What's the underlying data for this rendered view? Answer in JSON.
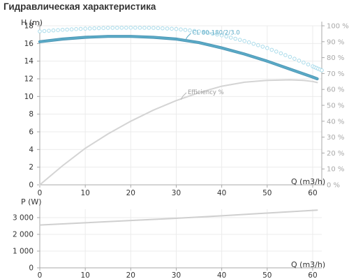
{
  "title": "Гидравлическая характеристика",
  "colors": {
    "head_curve": "#5aaac6",
    "head_outline": "#4a92b2",
    "efficiency_curve": "#d4d4d4",
    "power_curve": "#cfcfcf",
    "npsh_dots": "#a9dbea",
    "grid": "#ebebeb",
    "axis": "#a8a8a8",
    "text": "#333333",
    "right_axis_text": "#a8a8a8"
  },
  "chart_data": [
    {
      "type": "line",
      "title": "Гидравлическая характеристика",
      "xlabel": "Q (m3/h)",
      "ylabel": "H (m)",
      "y2label": "",
      "xlim": [
        0,
        62
      ],
      "ylim": [
        0,
        18
      ],
      "y2lim": [
        0,
        100
      ],
      "xticks": [
        "0",
        "10",
        "20",
        "30",
        "40",
        "50",
        "60"
      ],
      "yticks": [
        "0",
        "2",
        "4",
        "6",
        "8",
        "10",
        "12",
        "14",
        "16",
        "18"
      ],
      "y2ticks": [
        "0 %",
        "10 %",
        "20 %",
        "30 %",
        "40 %",
        "50 %",
        "60 %",
        "70 %",
        "80 %",
        "90 %",
        "100 %"
      ],
      "grid": true,
      "series": [
        {
          "name": "CL 80-180/2/3.0",
          "axis": "left",
          "style": "thick-line",
          "x": [
            0,
            5,
            10,
            15,
            20,
            25,
            30,
            35,
            40,
            45,
            50,
            55,
            60,
            61
          ],
          "y": [
            16.2,
            16.5,
            16.7,
            16.8,
            16.8,
            16.7,
            16.5,
            16.1,
            15.5,
            14.8,
            14.0,
            13.1,
            12.2,
            12.0
          ]
        },
        {
          "name": "Efficiency %",
          "axis": "right",
          "style": "line",
          "x": [
            0,
            5,
            10,
            15,
            20,
            25,
            30,
            35,
            40,
            45,
            50,
            55,
            58,
            60,
            61
          ],
          "y": [
            0,
            12,
            23,
            32,
            40,
            47,
            53,
            58,
            62,
            64.5,
            65.7,
            66,
            65.7,
            65,
            64.3
          ]
        },
        {
          "name": "",
          "axis": "right",
          "style": "dotted",
          "x": [
            0,
            5,
            10,
            15,
            20,
            25,
            30,
            35,
            40,
            45,
            50,
            55,
            60,
            62
          ],
          "y": [
            96.5,
            97.5,
            98.2,
            98.7,
            98.8,
            98.7,
            98.0,
            96.5,
            94.0,
            90.5,
            86.0,
            80.5,
            74.5,
            72.0
          ]
        }
      ]
    },
    {
      "type": "line",
      "title": "",
      "xlabel": "Q (m3/h)",
      "ylabel": "P (W)",
      "xlim": [
        0,
        62
      ],
      "ylim": [
        0,
        3500
      ],
      "xticks": [
        "0",
        "10",
        "20",
        "30",
        "40",
        "50",
        "60"
      ],
      "yticks": [
        "0",
        "1 000",
        "2 000",
        "3 000"
      ],
      "grid": true,
      "series": [
        {
          "name": "",
          "style": "line",
          "x": [
            0,
            10,
            20,
            30,
            40,
            50,
            61
          ],
          "y": [
            2560,
            2690,
            2830,
            2960,
            3110,
            3270,
            3450
          ]
        }
      ]
    }
  ]
}
